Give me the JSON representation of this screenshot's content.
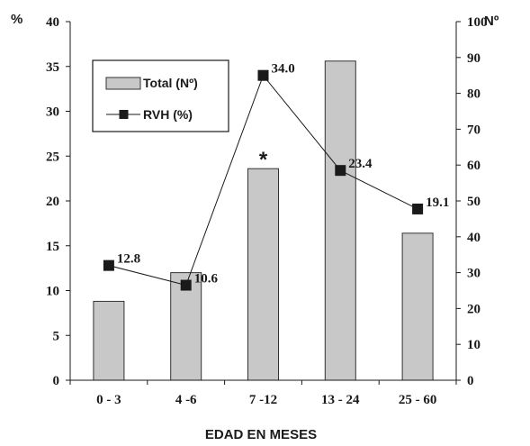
{
  "chart_data": {
    "type": "bar",
    "categories": [
      "0 - 3",
      "4 -6",
      "7 -12",
      "13 - 24",
      "25 - 60"
    ],
    "xlabel": "EDAD EN MESES",
    "left_axis": {
      "label": "%",
      "ylim": [
        0,
        40
      ],
      "ticks": [
        0,
        5,
        10,
        15,
        20,
        25,
        30,
        35,
        40
      ]
    },
    "right_axis": {
      "label": "Nº",
      "ylim": [
        0,
        100
      ],
      "ticks": [
        0,
        10,
        20,
        30,
        40,
        50,
        60,
        70,
        80,
        90,
        100
      ]
    },
    "series": [
      {
        "name": "Total (Nº)",
        "kind": "bar",
        "axis": "right",
        "values": [
          22,
          30,
          59,
          89,
          41
        ]
      },
      {
        "name": "RVH (%)",
        "kind": "line",
        "axis": "left",
        "values": [
          12.8,
          10.6,
          34.0,
          23.4,
          19.1
        ]
      }
    ],
    "data_labels": [
      "12.8",
      "10.6",
      "34.0",
      "23.4",
      "19.1"
    ],
    "annotation": {
      "text": "*",
      "category": "7 -12"
    },
    "legend": {
      "position": "top-left",
      "items": [
        "Total (Nº)",
        "RVH (%)"
      ]
    },
    "grid": false,
    "colors": {
      "bar_fill": "#c8c8c8",
      "bar_stroke": "#333333",
      "line": "#1a1a1a",
      "marker": "#1a1a1a"
    }
  }
}
